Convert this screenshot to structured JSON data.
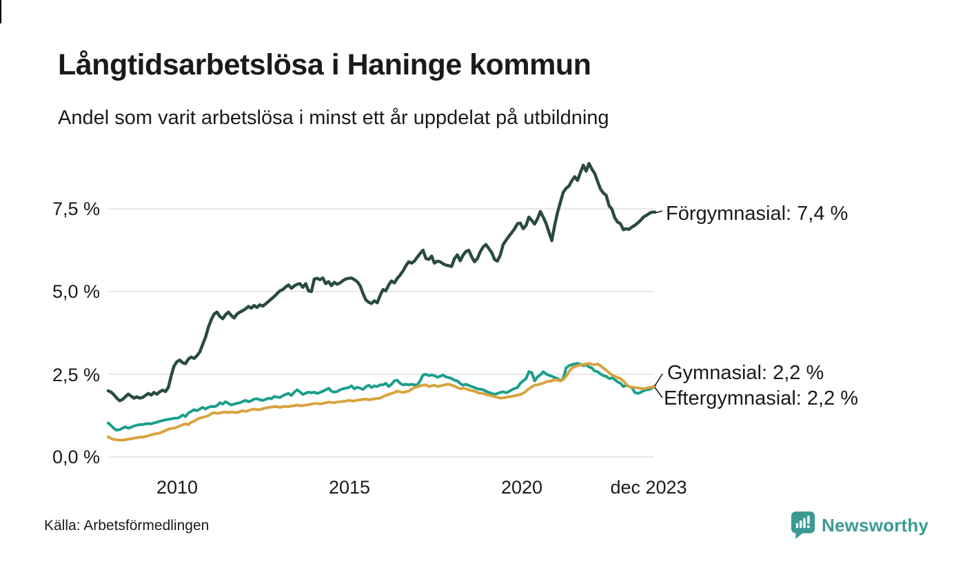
{
  "chart_data": {
    "type": "line",
    "title": "Långtidsarbetslösa i Haninge kommun",
    "subtitle": "Andel som varit arbetslösa i minst ett år uppdelat på utbildning",
    "source": "Källa: Arbetsförmedlingen",
    "x_range_months": [
      "2008-01",
      "2023-12"
    ],
    "x_ticks": [
      {
        "label": "2010"
      },
      {
        "label": "2015"
      },
      {
        "label": "2020"
      },
      {
        "label": "dec 2023"
      }
    ],
    "y_ticks": [
      {
        "label": "7,5 %",
        "value": 7.5
      },
      {
        "label": "5,0 %",
        "value": 5.0
      },
      {
        "label": "2,5 %",
        "value": 2.5
      },
      {
        "label": "0,0 %",
        "value": 0.0
      }
    ],
    "ylim": [
      0,
      9.1
    ],
    "grid": "horizontal-only",
    "legend_position": "end-of-line-labels",
    "series": [
      {
        "name": "Förgymnasial",
        "end_label": "Förgymnasial: 7,4 %",
        "end_value_label": "7,4 %",
        "color": "#2a4a43",
        "values": [
          2.0,
          1.96,
          1.88,
          1.78,
          1.7,
          1.74,
          1.82,
          1.9,
          1.84,
          1.78,
          1.82,
          1.78,
          1.8,
          1.86,
          1.92,
          1.87,
          1.95,
          1.9,
          1.97,
          2.02,
          1.98,
          2.1,
          2.45,
          2.75,
          2.88,
          2.93,
          2.85,
          2.82,
          2.96,
          3.02,
          2.98,
          3.06,
          3.18,
          3.4,
          3.62,
          3.92,
          4.15,
          4.32,
          4.38,
          4.25,
          4.18,
          4.3,
          4.38,
          4.28,
          4.2,
          4.32,
          4.38,
          4.42,
          4.48,
          4.55,
          4.5,
          4.58,
          4.52,
          4.6,
          4.56,
          4.63,
          4.7,
          4.78,
          4.85,
          4.94,
          5.02,
          5.06,
          5.14,
          5.2,
          5.1,
          5.17,
          5.22,
          5.24,
          5.13,
          5.24,
          5.02,
          5.0,
          5.38,
          5.4,
          5.36,
          5.41,
          5.24,
          5.3,
          5.18,
          5.28,
          5.22,
          5.26,
          5.33,
          5.38,
          5.4,
          5.41,
          5.36,
          5.3,
          5.18,
          4.95,
          4.75,
          4.68,
          4.64,
          4.72,
          4.66,
          4.88,
          5.06,
          5.02,
          5.2,
          5.32,
          5.26,
          5.4,
          5.5,
          5.62,
          5.78,
          5.9,
          5.86,
          5.92,
          6.04,
          6.15,
          6.25,
          6.0,
          5.97,
          6.07,
          5.86,
          5.92,
          5.9,
          5.84,
          5.8,
          5.78,
          5.76,
          6.0,
          6.11,
          5.93,
          6.1,
          6.21,
          6.25,
          6.05,
          5.9,
          6.0,
          6.2,
          6.35,
          6.42,
          6.3,
          6.18,
          5.97,
          5.92,
          6.1,
          6.42,
          6.55,
          6.67,
          6.78,
          6.9,
          7.05,
          7.07,
          6.9,
          7.0,
          7.25,
          7.15,
          7.04,
          7.2,
          7.42,
          7.25,
          7.06,
          6.8,
          6.54,
          7.0,
          7.39,
          7.7,
          8.0,
          8.12,
          8.19,
          8.35,
          8.47,
          8.36,
          8.6,
          8.82,
          8.64,
          8.87,
          8.7,
          8.57,
          8.33,
          8.1,
          7.98,
          7.91,
          7.6,
          7.49,
          7.23,
          7.1,
          7.05,
          6.87,
          6.9,
          6.88,
          6.95,
          7.0,
          7.07,
          7.15,
          7.25,
          7.3,
          7.36,
          7.4,
          7.4
        ]
      },
      {
        "name": "Gymnasial",
        "end_label": "Gymnasial: 2,2 %",
        "end_value_label": "2,2 %",
        "color": "#1a9e8b",
        "values": [
          1.03,
          0.95,
          0.86,
          0.81,
          0.83,
          0.87,
          0.91,
          0.87,
          0.9,
          0.94,
          0.96,
          0.98,
          0.98,
          1.0,
          1.01,
          1.0,
          1.03,
          1.05,
          1.08,
          1.1,
          1.12,
          1.14,
          1.15,
          1.17,
          1.17,
          1.2,
          1.27,
          1.22,
          1.33,
          1.38,
          1.43,
          1.4,
          1.45,
          1.5,
          1.45,
          1.5,
          1.53,
          1.52,
          1.55,
          1.64,
          1.6,
          1.67,
          1.62,
          1.57,
          1.6,
          1.62,
          1.64,
          1.68,
          1.71,
          1.67,
          1.7,
          1.75,
          1.76,
          1.73,
          1.71,
          1.74,
          1.78,
          1.76,
          1.83,
          1.81,
          1.8,
          1.85,
          1.89,
          1.92,
          1.86,
          1.96,
          2.03,
          1.97,
          1.89,
          1.93,
          1.96,
          1.94,
          1.96,
          1.92,
          1.95,
          1.99,
          2.03,
          2.08,
          1.99,
          1.96,
          1.98,
          2.03,
          2.06,
          2.08,
          2.1,
          2.15,
          2.06,
          2.11,
          2.08,
          2.04,
          2.12,
          2.17,
          2.1,
          2.15,
          2.13,
          2.18,
          2.18,
          2.23,
          2.13,
          2.2,
          2.3,
          2.32,
          2.23,
          2.18,
          2.2,
          2.18,
          2.2,
          2.18,
          2.18,
          2.3,
          2.48,
          2.5,
          2.46,
          2.48,
          2.46,
          2.41,
          2.44,
          2.48,
          2.42,
          2.4,
          2.37,
          2.32,
          2.3,
          2.22,
          2.17,
          2.2,
          2.16,
          2.13,
          2.1,
          2.06,
          2.05,
          2.03,
          1.99,
          1.95,
          1.92,
          1.89,
          1.92,
          1.95,
          1.97,
          1.94,
          1.98,
          2.03,
          2.07,
          2.1,
          2.23,
          2.3,
          2.37,
          2.58,
          2.55,
          2.3,
          2.42,
          2.48,
          2.58,
          2.51,
          2.47,
          2.44,
          2.4,
          2.37,
          2.3,
          2.37,
          2.69,
          2.76,
          2.79,
          2.81,
          2.83,
          2.8,
          2.76,
          2.79,
          2.72,
          2.69,
          2.6,
          2.58,
          2.51,
          2.46,
          2.44,
          2.37,
          2.39,
          2.34,
          2.27,
          2.23,
          2.13,
          2.17,
          2.13,
          2.1,
          1.95,
          1.92,
          1.95,
          2.0,
          2.03,
          2.04,
          2.08,
          2.15
        ]
      },
      {
        "name": "Eftergymnasial",
        "end_label": "Eftergymnasial: 2,2 %",
        "end_value_label": "2,2 %",
        "color": "#d8a33e",
        "values": [
          0.61,
          0.56,
          0.53,
          0.52,
          0.51,
          0.51,
          0.52,
          0.54,
          0.55,
          0.57,
          0.58,
          0.6,
          0.6,
          0.62,
          0.64,
          0.67,
          0.69,
          0.71,
          0.72,
          0.76,
          0.8,
          0.84,
          0.86,
          0.87,
          0.9,
          0.94,
          0.97,
          1.0,
          0.98,
          1.05,
          1.08,
          1.14,
          1.17,
          1.2,
          1.22,
          1.25,
          1.31,
          1.34,
          1.32,
          1.33,
          1.35,
          1.36,
          1.34,
          1.36,
          1.35,
          1.34,
          1.37,
          1.4,
          1.38,
          1.4,
          1.43,
          1.45,
          1.43,
          1.43,
          1.46,
          1.48,
          1.5,
          1.51,
          1.52,
          1.52,
          1.5,
          1.52,
          1.53,
          1.52,
          1.54,
          1.55,
          1.57,
          1.55,
          1.55,
          1.57,
          1.58,
          1.6,
          1.61,
          1.62,
          1.6,
          1.62,
          1.64,
          1.66,
          1.65,
          1.64,
          1.66,
          1.67,
          1.68,
          1.69,
          1.71,
          1.7,
          1.69,
          1.72,
          1.73,
          1.74,
          1.75,
          1.73,
          1.74,
          1.76,
          1.77,
          1.78,
          1.82,
          1.86,
          1.89,
          1.92,
          1.95,
          1.99,
          1.97,
          1.95,
          1.97,
          1.99,
          2.05,
          2.1,
          2.12,
          2.15,
          2.17,
          2.18,
          2.13,
          2.15,
          2.17,
          2.13,
          2.15,
          2.17,
          2.19,
          2.2,
          2.17,
          2.14,
          2.1,
          2.06,
          2.08,
          2.06,
          2.03,
          2.01,
          1.99,
          1.95,
          1.93,
          1.92,
          1.89,
          1.87,
          1.85,
          1.82,
          1.8,
          1.78,
          1.79,
          1.8,
          1.82,
          1.83,
          1.85,
          1.87,
          1.89,
          1.93,
          1.99,
          2.06,
          2.12,
          2.17,
          2.18,
          2.21,
          2.23,
          2.27,
          2.29,
          2.3,
          2.34,
          2.32,
          2.3,
          2.34,
          2.44,
          2.58,
          2.69,
          2.72,
          2.76,
          2.78,
          2.8,
          2.81,
          2.83,
          2.8,
          2.79,
          2.81,
          2.76,
          2.69,
          2.62,
          2.55,
          2.48,
          2.44,
          2.4,
          2.37,
          2.3,
          2.2,
          2.13,
          2.11,
          2.1,
          2.09,
          2.08,
          2.06,
          2.08,
          2.1,
          2.11,
          2.15
        ]
      }
    ],
    "colors": {
      "grid": "#e7e7ea",
      "text": "#1a1a1a",
      "logo": "#3b9a93"
    }
  },
  "branding": {
    "logo_text": "Newsworthy"
  }
}
